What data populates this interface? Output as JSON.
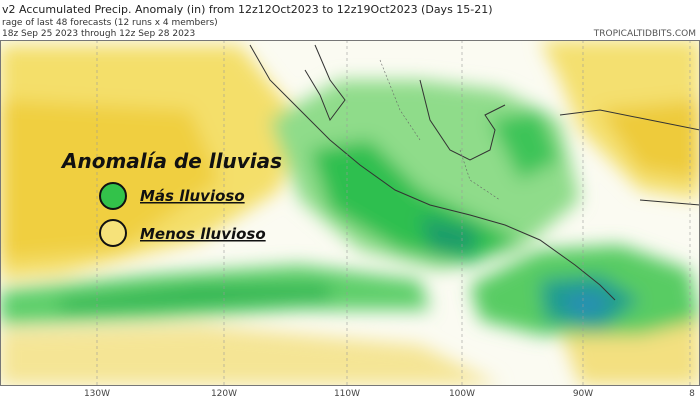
{
  "header": {
    "lines": [
      "v2 Accumulated Precip. Anomaly (in) from 12z12Oct2023 to 12z19Oct2023 (Days 15-21)",
      "rage of last 48 forecasts (12 runs x 4 members)",
      "18z Sep 25 2023 through 12z Sep 28 2023"
    ],
    "watermark": "TROPICALTIDBITS.COM"
  },
  "legend": {
    "title": "Anomalía de lluvias",
    "items": [
      {
        "label": "Más lluvioso"
      },
      {
        "label": "Menos lluvioso"
      }
    ]
  },
  "axis": {
    "longitudes": [
      "130W",
      "120W",
      "110W",
      "100W",
      "90W",
      "8"
    ]
  }
}
